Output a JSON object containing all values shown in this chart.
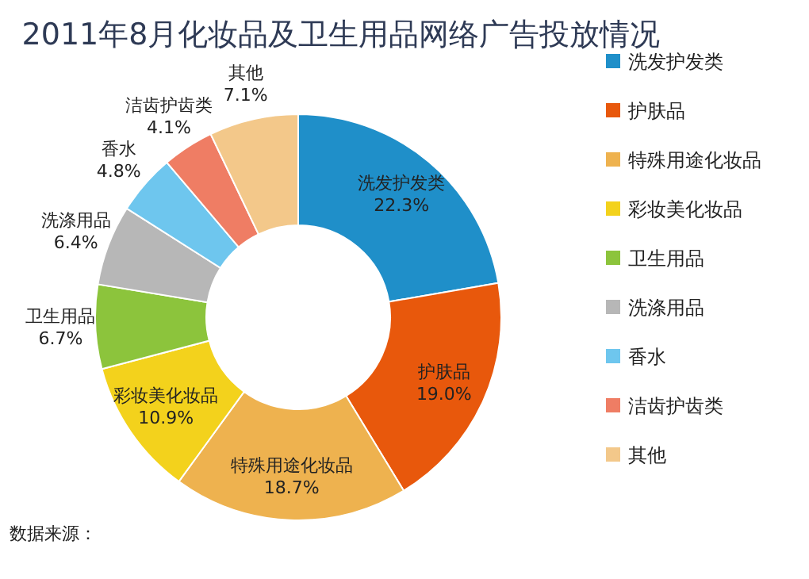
{
  "chart_data": {
    "type": "donut",
    "title": "2011年8月化妆品及卫生用品网络广告投放情况",
    "categories": [
      "洗发护发类",
      "护肤品",
      "特殊用途化妆品",
      "彩妆美化妆品",
      "卫生用品",
      "洗涤用品",
      "香水",
      "洁齿护齿类",
      "其他"
    ],
    "values": [
      22.3,
      19.0,
      18.7,
      10.9,
      6.7,
      6.4,
      4.8,
      4.1,
      7.1
    ],
    "value_labels": [
      "22.3%",
      "19.0%",
      "18.7%",
      "10.9%",
      "6.7%",
      "6.4%",
      "4.8%",
      "4.1%",
      "7.1%"
    ],
    "colors": [
      "#1f8fc9",
      "#e8580c",
      "#eeb24f",
      "#f3d21c",
      "#8cc43c",
      "#b7b7b7",
      "#6ec6ee",
      "#ef7d64",
      "#f3c88a"
    ],
    "legend": "right",
    "annotations": [
      "数据来源："
    ]
  }
}
